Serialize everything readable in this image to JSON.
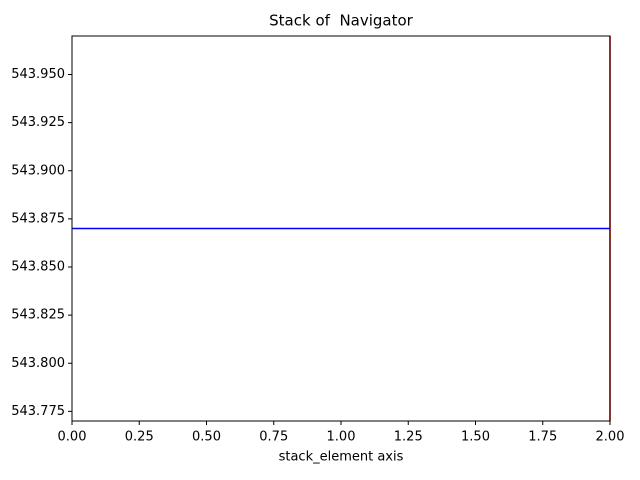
{
  "chart_data": {
    "type": "line",
    "title": "Stack of  Navigator",
    "xlabel": "stack_element axis",
    "x": [
      0,
      2
    ],
    "series": [
      {
        "color": "#0000ff",
        "values": [
          543.87,
          543.87
        ]
      }
    ],
    "vline": {
      "x": 2,
      "color": "#ff0000"
    },
    "xlim": [
      0,
      2
    ],
    "xticks": [
      {
        "value": 0,
        "label": "0.00"
      },
      {
        "value": 0.25,
        "label": "0.25"
      },
      {
        "value": 0.5,
        "label": "0.50"
      },
      {
        "value": 0.75,
        "label": "0.75"
      },
      {
        "value": 1,
        "label": "1.00"
      },
      {
        "value": 1.25,
        "label": "1.25"
      },
      {
        "value": 1.5,
        "label": "1.50"
      },
      {
        "value": 1.75,
        "label": "1.75"
      },
      {
        "value": 2,
        "label": "2.00"
      }
    ],
    "ylim": [
      543.77,
      543.97
    ],
    "yticks": [
      {
        "value": 543.775,
        "label": "543.775"
      },
      {
        "value": 543.8,
        "label": "543.800"
      },
      {
        "value": 543.825,
        "label": "543.825"
      },
      {
        "value": 543.85,
        "label": "543.850"
      },
      {
        "value": 543.875,
        "label": "543.875"
      },
      {
        "value": 543.9,
        "label": "543.900"
      },
      {
        "value": 543.925,
        "label": "543.925"
      },
      {
        "value": 543.95,
        "label": "543.950"
      }
    ]
  }
}
